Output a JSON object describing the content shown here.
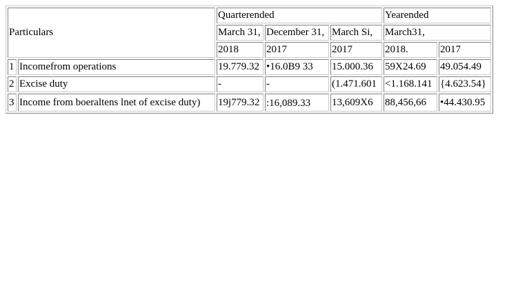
{
  "header": {
    "particulars": "Particulars",
    "quarter_ended": "Quarterended",
    "year_ended": "Yearended",
    "periods": [
      {
        "month": "March 31,",
        "year": "2018"
      },
      {
        "month": "December 31,",
        "year": "2017"
      },
      {
        "month": "March Si,",
        "year": "2017"
      }
    ],
    "year_month": "March31,",
    "years": [
      "2018.",
      "2017"
    ]
  },
  "rows": [
    {
      "index": "1",
      "label": "Incomefrom operations",
      "values": [
        "19.779.32",
        "•16.0B9 33",
        "15.000.36",
        "59X24.69",
        "49.054.49"
      ]
    },
    {
      "index": "2",
      "label": "Excise duty",
      "values": [
        "-",
        "-",
        "(1.471.601",
        "<1.168.141",
        "{4.623.54}"
      ]
    },
    {
      "index": "3",
      "label": "Income from boeraltens lnet of excise duty)",
      "values": [
        "19j779.32",
        ":16,089.33",
        "13,609X6",
        "88,456,66",
        "•44.430.95"
      ]
    }
  ]
}
